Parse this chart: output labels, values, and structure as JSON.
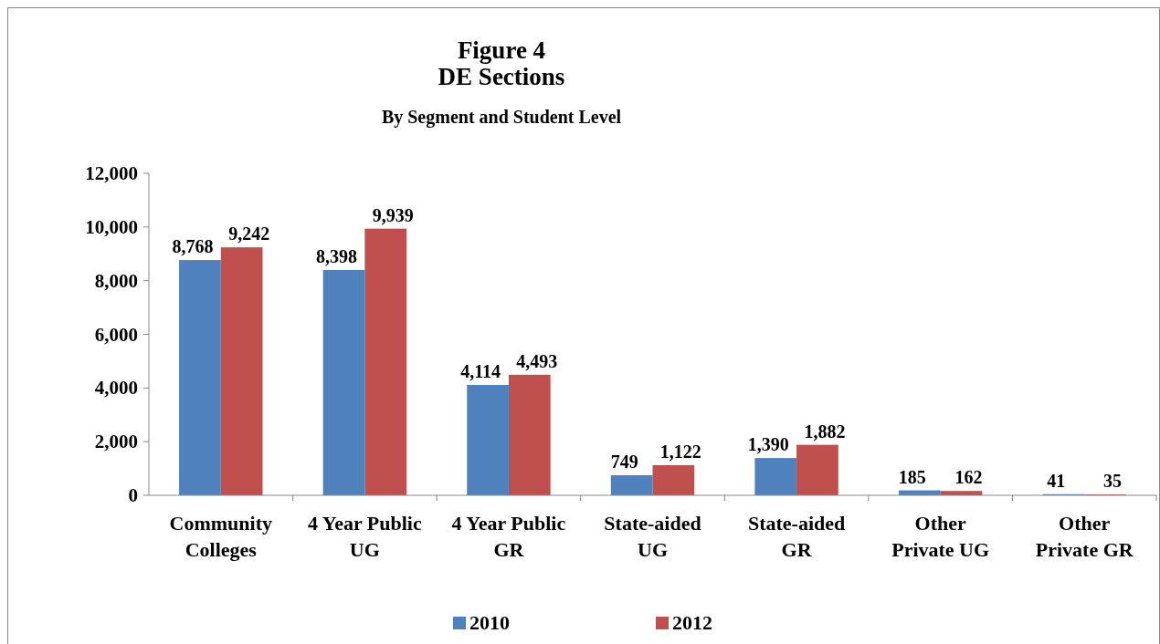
{
  "chart_data": {
    "type": "bar",
    "title": "Figure 4\nDE Sections",
    "subtitle": "By Segment and Student Level",
    "categories": [
      "Community\nColleges",
      "4 Year Public\nUG",
      "4 Year Public\nGR",
      "State-aided\nUG",
      "State-aided\nGR",
      "Other\nPrivate UG",
      "Other\nPrivate GR"
    ],
    "series": [
      {
        "name": "2010",
        "color": "#4f81bd",
        "values": [
          8768,
          8398,
          4114,
          749,
          1390,
          185,
          41
        ],
        "value_labels": [
          "8,768",
          "8,398",
          "4,114",
          "749",
          "1,390",
          "185",
          "41"
        ]
      },
      {
        "name": "2012",
        "color": "#c0504d",
        "values": [
          9242,
          9939,
          4493,
          1122,
          1882,
          162,
          35
        ],
        "value_labels": [
          "9,242",
          "9,939",
          "4,493",
          "1,122",
          "1,882",
          "162",
          "35"
        ]
      }
    ],
    "ylim": [
      0,
      12000
    ],
    "yticks": [
      {
        "value": 0,
        "label": "0"
      },
      {
        "value": 2000,
        "label": "2,000"
      },
      {
        "value": 4000,
        "label": "4,000"
      },
      {
        "value": 6000,
        "label": "6,000"
      },
      {
        "value": 8000,
        "label": "8,000"
      },
      {
        "value": 10000,
        "label": "10,000"
      },
      {
        "value": 12000,
        "label": "12,000"
      }
    ],
    "legend": "bottom",
    "grid": false
  }
}
